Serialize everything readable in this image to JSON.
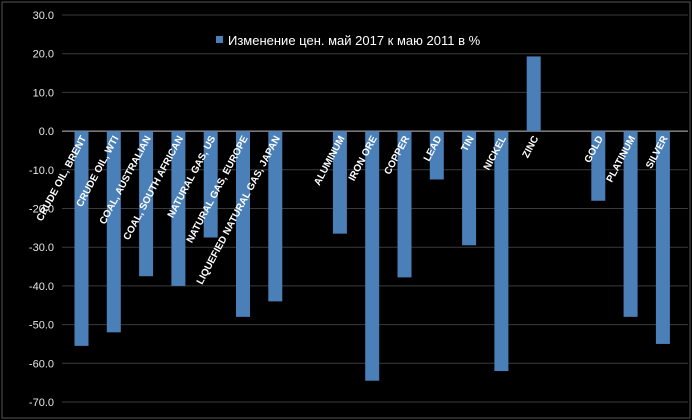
{
  "chart_data": {
    "type": "bar",
    "legend": "top-center",
    "grid": true,
    "ylim": [
      -70,
      30
    ],
    "yticks": [
      "30.0",
      "20.0",
      "10.0",
      "0.0",
      "-10.0",
      "-20.0",
      "-30.0",
      "-40.0",
      "-50.0",
      "-60.0",
      "-70.0"
    ],
    "categories": [
      "CRUDE OIL, BRENT",
      "CRUDE OIL, WTI",
      "COAL, AUSTRALIAN",
      "COAL, SOUTH AFRICAN",
      "NATURAL GAS, US",
      "NATURAL GAS, EUROPE",
      "LIQUEFIED NATURAL GAS, JAPAN",
      "",
      "ALUMINUM",
      "IRON ORE",
      "COPPER",
      "LEAD",
      "TIN",
      "NICKEL",
      "ZINC",
      "",
      "GOLD",
      "PLATINUM",
      "SILVER"
    ],
    "series": [
      {
        "name": "Изменение цен. май 2017 к маю 2011 в %",
        "color": "#4a7fb8",
        "values": [
          -55.5,
          -52.0,
          -37.5,
          -40.0,
          -27.5,
          -48.0,
          -44.0,
          null,
          -26.5,
          -64.5,
          -37.8,
          -12.5,
          -29.5,
          -62.0,
          19.3,
          null,
          -18.0,
          -48.0,
          -55.0
        ]
      }
    ]
  }
}
